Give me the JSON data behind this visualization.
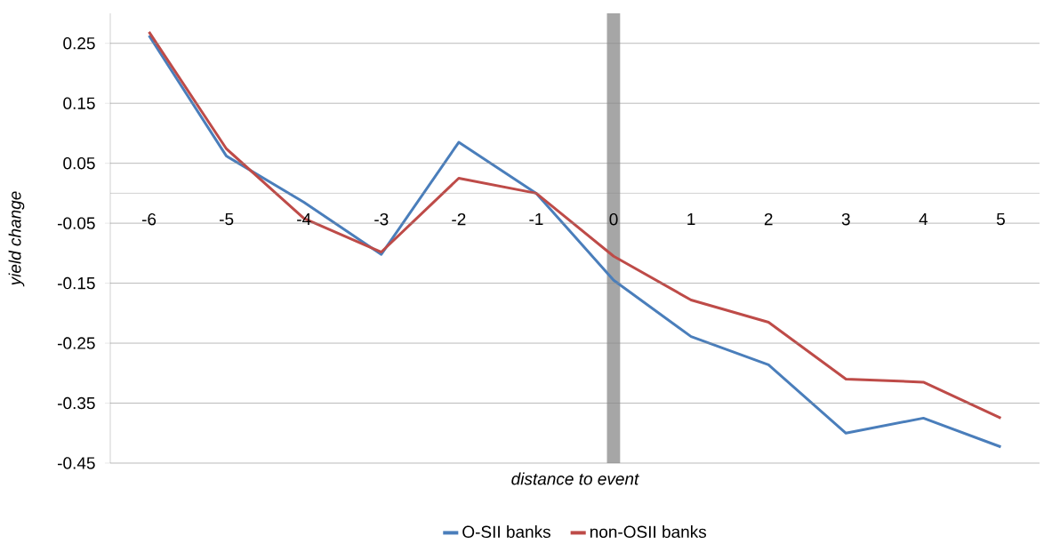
{
  "chart_data": {
    "type": "line",
    "xlabel": "distance to event",
    "ylabel": "yield change",
    "x": [
      -6,
      -5,
      -4,
      -3,
      -2,
      -1,
      0,
      1,
      2,
      3,
      4,
      5
    ],
    "series": [
      {
        "name": "O-SII banks",
        "color": "#4a7ebb",
        "values": [
          0.263,
          0.062,
          -0.015,
          -0.102,
          0.085,
          0.0,
          -0.145,
          -0.239,
          -0.286,
          -0.4,
          -0.375,
          -0.423
        ]
      },
      {
        "name": "non-OSII banks",
        "color": "#be4b48",
        "values": [
          0.269,
          0.074,
          -0.042,
          -0.098,
          0.025,
          0.0,
          -0.105,
          -0.178,
          -0.215,
          -0.31,
          -0.315,
          -0.375
        ]
      }
    ],
    "xlim": [
      -6.5,
      5.5
    ],
    "ylim": [
      -0.45,
      0.3
    ],
    "xticks": [
      -6,
      -5,
      -4,
      -3,
      -2,
      -1,
      0,
      1,
      2,
      3,
      4,
      5
    ],
    "yticks": [
      -0.45,
      -0.35,
      -0.25,
      -0.15,
      -0.05,
      0.05,
      0.15,
      0.25
    ],
    "grid": "y",
    "legend": "bottom",
    "ref_lines": [
      {
        "axis": "x",
        "value": 0,
        "color": "#a6a6a6"
      }
    ]
  }
}
